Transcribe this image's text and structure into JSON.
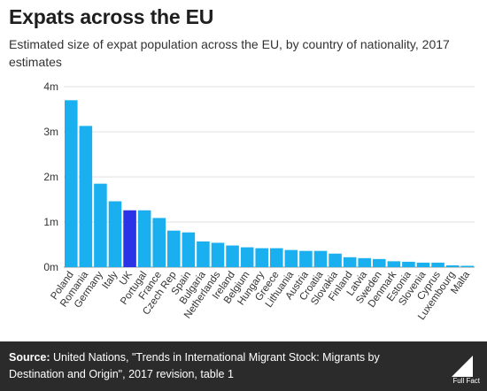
{
  "chart_data": {
    "type": "bar",
    "title": "Expats across the EU",
    "subtitle": "Estimated size of expat population across the EU, by country of nationality, 2017 estimates",
    "categories": [
      "Poland",
      "Romania",
      "Germany",
      "Italy",
      "UK",
      "Portugal",
      "France",
      "Czech Rep",
      "Spain",
      "Bulgaria",
      "Netherlands",
      "Ireland",
      "Belgium",
      "Hungary",
      "Greece",
      "Lithuania",
      "Austria",
      "Croatia",
      "Slovakia",
      "Finland",
      "Latvia",
      "Sweden",
      "Denmark",
      "Estonia",
      "Slovenia",
      "Cyprus",
      "Luxembourg",
      "Malta"
    ],
    "values": [
      3.7,
      3.13,
      1.85,
      1.46,
      1.26,
      1.26,
      1.09,
      0.81,
      0.77,
      0.57,
      0.54,
      0.48,
      0.44,
      0.42,
      0.42,
      0.38,
      0.36,
      0.36,
      0.3,
      0.22,
      0.2,
      0.18,
      0.13,
      0.12,
      0.1,
      0.1,
      0.04,
      0.03
    ],
    "highlight": "UK",
    "ylim": [
      0,
      4
    ],
    "yticks": [
      0,
      1,
      2,
      3,
      4
    ],
    "ytick_labels": [
      "0m",
      "1m",
      "2m",
      "3m",
      "4m"
    ],
    "xlabel": "",
    "ylabel": "",
    "grid": true,
    "unit": "millions",
    "colors": {
      "bar": "#1ab0f0",
      "highlight": "#2b33e6",
      "grid": "#e0e0e0"
    }
  },
  "footer": {
    "source_label": "Source:",
    "source_text": " United Nations, \"Trends in International Migrant Stock: Migrants by Destination and Origin\", 2017 revision, table 1",
    "logo_text": "Full Fact",
    "background": "#2b2b2b"
  }
}
